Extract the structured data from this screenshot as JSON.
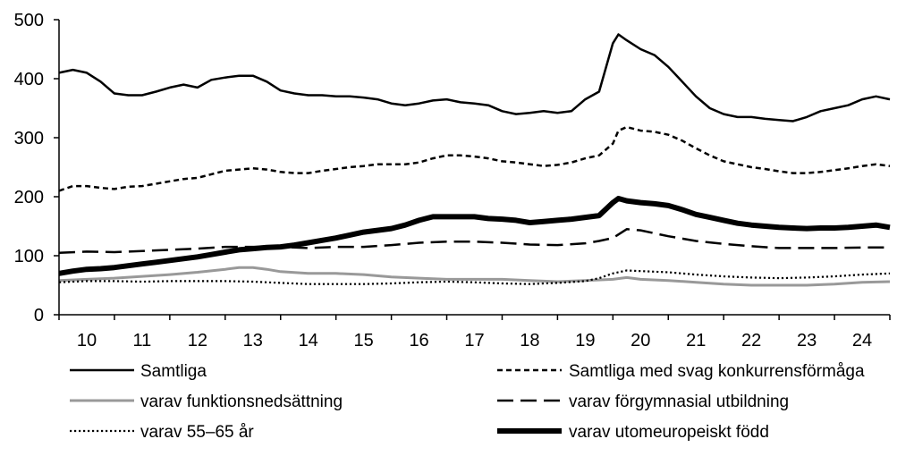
{
  "chart_data": {
    "type": "line",
    "title": "",
    "xlabel": "",
    "ylabel": "",
    "ylim": [
      0,
      500
    ],
    "y_ticks": [
      "0",
      "100",
      "200",
      "300",
      "400",
      "500"
    ],
    "x_range": [
      10,
      25
    ],
    "x_ticks": [
      {
        "x": 10,
        "label": "10"
      },
      {
        "x": 11,
        "label": "11"
      },
      {
        "x": 12,
        "label": "12"
      },
      {
        "x": 13,
        "label": "13"
      },
      {
        "x": 14,
        "label": "14"
      },
      {
        "x": 15,
        "label": "15"
      },
      {
        "x": 16,
        "label": "16"
      },
      {
        "x": 17,
        "label": "17"
      },
      {
        "x": 18,
        "label": "18"
      },
      {
        "x": 19,
        "label": "19"
      },
      {
        "x": 20,
        "label": "20"
      },
      {
        "x": 21,
        "label": "21"
      },
      {
        "x": 22,
        "label": "22"
      },
      {
        "x": 23,
        "label": "23"
      },
      {
        "x": 24,
        "label": "24"
      }
    ],
    "grid": false,
    "legend_position": "bottom",
    "series": [
      {
        "name": "Samtliga",
        "style": "solid",
        "color": "#000000",
        "x": [
          10,
          10.25,
          10.5,
          10.75,
          11,
          11.25,
          11.5,
          11.75,
          12,
          12.25,
          12.5,
          12.75,
          13,
          13.25,
          13.5,
          13.75,
          14,
          14.25,
          14.5,
          14.75,
          15,
          15.25,
          15.5,
          15.75,
          16,
          16.25,
          16.5,
          16.75,
          17,
          17.25,
          17.5,
          17.75,
          18,
          18.25,
          18.5,
          18.75,
          19,
          19.25,
          19.5,
          19.75,
          20,
          20.1,
          20.25,
          20.5,
          20.75,
          21,
          21.25,
          21.5,
          21.75,
          22,
          22.25,
          22.5,
          22.75,
          23,
          23.25,
          23.5,
          23.75,
          24,
          24.25,
          24.5,
          24.75,
          25
        ],
        "values": [
          410,
          415,
          410,
          395,
          375,
          372,
          372,
          378,
          385,
          390,
          385,
          398,
          402,
          405,
          405,
          395,
          380,
          375,
          372,
          372,
          370,
          370,
          368,
          365,
          358,
          355,
          358,
          363,
          365,
          360,
          358,
          355,
          345,
          340,
          342,
          345,
          342,
          345,
          365,
          378,
          460,
          475,
          465,
          450,
          440,
          420,
          395,
          370,
          350,
          340,
          335,
          335,
          332,
          330,
          328,
          335,
          345,
          350,
          355,
          365,
          370,
          365
        ]
      },
      {
        "name": "Samtliga med svag konkurrensförmåga",
        "style": "short-dash",
        "color": "#000000",
        "x": [
          10,
          10.25,
          10.5,
          10.75,
          11,
          11.25,
          11.5,
          11.75,
          12,
          12.25,
          12.5,
          12.75,
          13,
          13.25,
          13.5,
          13.75,
          14,
          14.25,
          14.5,
          14.75,
          15,
          15.25,
          15.5,
          15.75,
          16,
          16.25,
          16.5,
          16.75,
          17,
          17.25,
          17.5,
          17.75,
          18,
          18.25,
          18.5,
          18.75,
          19,
          19.25,
          19.5,
          19.75,
          20,
          20.1,
          20.25,
          20.5,
          20.75,
          21,
          21.25,
          21.5,
          21.75,
          22,
          22.25,
          22.5,
          22.75,
          23,
          23.25,
          23.5,
          23.75,
          24,
          24.25,
          24.5,
          24.75,
          25
        ],
        "values": [
          210,
          218,
          218,
          215,
          213,
          217,
          218,
          222,
          226,
          230,
          232,
          238,
          244,
          246,
          248,
          246,
          242,
          240,
          240,
          244,
          247,
          250,
          252,
          255,
          255,
          255,
          258,
          265,
          270,
          270,
          268,
          265,
          260,
          258,
          255,
          252,
          254,
          258,
          265,
          270,
          290,
          312,
          318,
          312,
          310,
          305,
          295,
          282,
          270,
          260,
          255,
          250,
          247,
          243,
          240,
          240,
          242,
          245,
          248,
          252,
          255,
          252
        ]
      },
      {
        "name": "varav funktionsnedsättning",
        "style": "gray",
        "color": "#999999",
        "x": [
          10,
          10.5,
          11,
          11.5,
          12,
          12.5,
          13,
          13.25,
          13.5,
          13.75,
          14,
          14.5,
          15,
          15.5,
          16,
          16.5,
          17,
          17.5,
          18,
          18.5,
          19,
          19.5,
          20,
          20.25,
          20.5,
          21,
          21.5,
          22,
          22.5,
          23,
          23.5,
          24,
          24.5,
          25
        ],
        "values": [
          58,
          60,
          62,
          65,
          68,
          72,
          77,
          80,
          80,
          77,
          73,
          70,
          70,
          68,
          64,
          62,
          60,
          60,
          60,
          58,
          56,
          58,
          60,
          63,
          60,
          58,
          55,
          52,
          50,
          50,
          50,
          52,
          55,
          56
        ]
      },
      {
        "name": "varav förgymnasial utbildning",
        "style": "long-dash",
        "color": "#000000",
        "x": [
          10,
          10.5,
          11,
          11.5,
          12,
          12.5,
          13,
          13.5,
          14,
          14.5,
          15,
          15.5,
          16,
          16.5,
          17,
          17.5,
          18,
          18.5,
          19,
          19.5,
          19.75,
          20,
          20.25,
          20.5,
          20.75,
          21,
          21.5,
          22,
          22.5,
          23,
          23.5,
          24,
          24.5,
          25
        ],
        "values": [
          105,
          107,
          106,
          108,
          110,
          112,
          115,
          115,
          115,
          113,
          115,
          115,
          118,
          122,
          124,
          124,
          122,
          119,
          118,
          121,
          125,
          130,
          145,
          143,
          138,
          133,
          125,
          120,
          116,
          113,
          113,
          113,
          114,
          114
        ]
      },
      {
        "name": "varav 55–65 år",
        "style": "dotted",
        "color": "#000000",
        "x": [
          10,
          10.5,
          11,
          11.5,
          12,
          12.5,
          13,
          13.5,
          14,
          14.5,
          15,
          15.5,
          16,
          16.5,
          17,
          17.5,
          18,
          18.5,
          19,
          19.5,
          19.75,
          20,
          20.25,
          20.5,
          21,
          21.5,
          22,
          22.5,
          23,
          23.5,
          24,
          24.5,
          25
        ],
        "values": [
          55,
          57,
          57,
          56,
          57,
          57,
          57,
          56,
          54,
          52,
          52,
          52,
          53,
          55,
          56,
          55,
          53,
          52,
          54,
          57,
          62,
          70,
          75,
          74,
          72,
          68,
          65,
          63,
          62,
          63,
          65,
          68,
          70
        ]
      },
      {
        "name": "varav utomeuropeiskt född",
        "style": "thick",
        "color": "#000000",
        "x": [
          10,
          10.25,
          10.5,
          10.75,
          11,
          11.25,
          11.5,
          11.75,
          12,
          12.25,
          12.5,
          12.75,
          13,
          13.25,
          13.5,
          13.75,
          14,
          14.25,
          14.5,
          14.75,
          15,
          15.25,
          15.5,
          15.75,
          16,
          16.25,
          16.5,
          16.75,
          17,
          17.25,
          17.5,
          17.75,
          18,
          18.25,
          18.5,
          18.75,
          19,
          19.25,
          19.5,
          19.75,
          20,
          20.1,
          20.25,
          20.5,
          20.75,
          21,
          21.25,
          21.5,
          21.75,
          22,
          22.25,
          22.5,
          22.75,
          23,
          23.25,
          23.5,
          23.75,
          24,
          24.25,
          24.5,
          24.75,
          25
        ],
        "values": [
          70,
          74,
          77,
          78,
          80,
          83,
          86,
          89,
          92,
          95,
          98,
          102,
          106,
          110,
          112,
          114,
          115,
          118,
          122,
          126,
          130,
          135,
          140,
          143,
          146,
          152,
          160,
          166,
          166,
          166,
          166,
          163,
          162,
          160,
          156,
          158,
          160,
          162,
          165,
          168,
          190,
          197,
          193,
          190,
          188,
          185,
          178,
          170,
          165,
          160,
          155,
          152,
          150,
          148,
          147,
          146,
          147,
          147,
          148,
          150,
          152,
          148
        ]
      }
    ]
  }
}
